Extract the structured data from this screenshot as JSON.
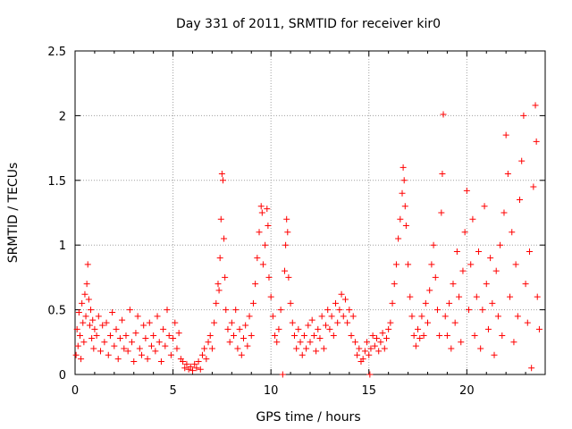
{
  "chart_data": {
    "type": "scatter",
    "title": "Day 331 of 2011, SRMTID for receiver kir0",
    "xlabel": "GPS time / hours",
    "ylabel": "SRMTID / TECUs",
    "xlim": [
      0,
      24
    ],
    "ylim": [
      0,
      2.5
    ],
    "xticks": [
      0,
      5,
      10,
      15,
      20
    ],
    "yticks": [
      0,
      0.5,
      1,
      1.5,
      2,
      2.5
    ],
    "xtick_labels": [
      "0",
      "5",
      "10",
      "15",
      "20"
    ],
    "ytick_labels": [
      "0",
      "0.5",
      "1",
      "1.5",
      "2",
      "2.5"
    ],
    "grid": true,
    "marker": "+",
    "color": "#ff0000",
    "series": [
      {
        "name": "SRMTID",
        "points": [
          [
            0.05,
            0.15
          ],
          [
            0.1,
            0.35
          ],
          [
            0.15,
            0.22
          ],
          [
            0.2,
            0.48
          ],
          [
            0.25,
            0.3
          ],
          [
            0.3,
            0.12
          ],
          [
            0.35,
            0.55
          ],
          [
            0.4,
            0.4
          ],
          [
            0.45,
            0.25
          ],
          [
            0.5,
            0.62
          ],
          [
            0.55,
            0.45
          ],
          [
            0.6,
            0.7
          ],
          [
            0.65,
            0.85
          ],
          [
            0.7,
            0.58
          ],
          [
            0.75,
            0.38
          ],
          [
            0.8,
            0.5
          ],
          [
            0.85,
            0.28
          ],
          [
            0.9,
            0.42
          ],
          [
            0.95,
            0.2
          ],
          [
            1.0,
            0.35
          ],
          [
            1.1,
            0.3
          ],
          [
            1.2,
            0.45
          ],
          [
            1.3,
            0.18
          ],
          [
            1.4,
            0.38
          ],
          [
            1.5,
            0.25
          ],
          [
            1.6,
            0.4
          ],
          [
            1.7,
            0.15
          ],
          [
            1.8,
            0.3
          ],
          [
            1.9,
            0.48
          ],
          [
            2.0,
            0.22
          ],
          [
            2.1,
            0.35
          ],
          [
            2.2,
            0.12
          ],
          [
            2.3,
            0.28
          ],
          [
            2.4,
            0.42
          ],
          [
            2.5,
            0.2
          ],
          [
            2.6,
            0.3
          ],
          [
            2.7,
            0.18
          ],
          [
            2.8,
            0.5
          ],
          [
            2.9,
            0.25
          ],
          [
            3.0,
            0.1
          ],
          [
            3.1,
            0.32
          ],
          [
            3.2,
            0.45
          ],
          [
            3.3,
            0.2
          ],
          [
            3.4,
            0.15
          ],
          [
            3.5,
            0.38
          ],
          [
            3.6,
            0.28
          ],
          [
            3.7,
            0.12
          ],
          [
            3.8,
            0.4
          ],
          [
            3.9,
            0.22
          ],
          [
            4.0,
            0.3
          ],
          [
            4.1,
            0.18
          ],
          [
            4.2,
            0.45
          ],
          [
            4.3,
            0.25
          ],
          [
            4.4,
            0.1
          ],
          [
            4.5,
            0.35
          ],
          [
            4.6,
            0.22
          ],
          [
            4.7,
            0.5
          ],
          [
            4.8,
            0.3
          ],
          [
            4.9,
            0.15
          ],
          [
            5.0,
            0.28
          ],
          [
            5.1,
            0.4
          ],
          [
            5.2,
            0.2
          ],
          [
            5.3,
            0.32
          ],
          [
            5.4,
            0.12
          ],
          [
            5.5,
            0.1
          ],
          [
            5.6,
            0.05
          ],
          [
            5.7,
            0.08
          ],
          [
            5.8,
            0.04
          ],
          [
            5.9,
            0.06
          ],
          [
            6.0,
            0.03
          ],
          [
            6.1,
            0.08
          ],
          [
            6.2,
            0.05
          ],
          [
            6.3,
            0.1
          ],
          [
            6.4,
            0.04
          ],
          [
            6.5,
            0.15
          ],
          [
            6.6,
            0.2
          ],
          [
            6.7,
            0.12
          ],
          [
            6.8,
            0.25
          ],
          [
            6.9,
            0.3
          ],
          [
            7.0,
            0.2
          ],
          [
            7.1,
            0.4
          ],
          [
            7.2,
            0.55
          ],
          [
            7.3,
            0.7
          ],
          [
            7.35,
            0.65
          ],
          [
            7.4,
            0.9
          ],
          [
            7.45,
            1.2
          ],
          [
            7.5,
            1.55
          ],
          [
            7.55,
            1.5
          ],
          [
            7.6,
            1.05
          ],
          [
            7.65,
            0.75
          ],
          [
            7.7,
            0.5
          ],
          [
            7.8,
            0.35
          ],
          [
            7.9,
            0.25
          ],
          [
            8.0,
            0.4
          ],
          [
            8.1,
            0.3
          ],
          [
            8.2,
            0.5
          ],
          [
            8.3,
            0.2
          ],
          [
            8.4,
            0.35
          ],
          [
            8.5,
            0.15
          ],
          [
            8.6,
            0.28
          ],
          [
            8.7,
            0.38
          ],
          [
            8.8,
            0.22
          ],
          [
            8.9,
            0.45
          ],
          [
            9.0,
            0.3
          ],
          [
            9.1,
            0.55
          ],
          [
            9.2,
            0.7
          ],
          [
            9.3,
            0.9
          ],
          [
            9.4,
            1.1
          ],
          [
            9.5,
            1.3
          ],
          [
            9.55,
            1.25
          ],
          [
            9.6,
            0.85
          ],
          [
            9.7,
            1.0
          ],
          [
            9.8,
            1.28
          ],
          [
            9.85,
            1.15
          ],
          [
            9.9,
            0.75
          ],
          [
            10.0,
            0.6
          ],
          [
            10.1,
            0.45
          ],
          [
            10.2,
            0.3
          ],
          [
            10.3,
            0.25
          ],
          [
            10.4,
            0.35
          ],
          [
            10.5,
            0.5
          ],
          [
            10.6,
            0.0
          ],
          [
            10.7,
            0.8
          ],
          [
            10.75,
            1.0
          ],
          [
            10.8,
            1.2
          ],
          [
            10.85,
            1.1
          ],
          [
            10.9,
            0.75
          ],
          [
            11.0,
            0.55
          ],
          [
            11.1,
            0.4
          ],
          [
            11.2,
            0.3
          ],
          [
            11.3,
            0.2
          ],
          [
            11.4,
            0.35
          ],
          [
            11.5,
            0.25
          ],
          [
            11.6,
            0.15
          ],
          [
            11.7,
            0.3
          ],
          [
            11.8,
            0.2
          ],
          [
            11.9,
            0.38
          ],
          [
            12.0,
            0.25
          ],
          [
            12.1,
            0.42
          ],
          [
            12.2,
            0.3
          ],
          [
            12.3,
            0.18
          ],
          [
            12.4,
            0.35
          ],
          [
            12.5,
            0.28
          ],
          [
            12.6,
            0.45
          ],
          [
            12.7,
            0.2
          ],
          [
            12.8,
            0.38
          ],
          [
            12.9,
            0.5
          ],
          [
            13.0,
            0.35
          ],
          [
            13.1,
            0.45
          ],
          [
            13.2,
            0.3
          ],
          [
            13.3,
            0.55
          ],
          [
            13.4,
            0.4
          ],
          [
            13.5,
            0.5
          ],
          [
            13.6,
            0.62
          ],
          [
            13.7,
            0.45
          ],
          [
            13.8,
            0.58
          ],
          [
            13.9,
            0.4
          ],
          [
            14.0,
            0.5
          ],
          [
            14.1,
            0.3
          ],
          [
            14.2,
            0.45
          ],
          [
            14.3,
            0.25
          ],
          [
            14.4,
            0.15
          ],
          [
            14.5,
            0.2
          ],
          [
            14.6,
            0.1
          ],
          [
            14.7,
            0.12
          ],
          [
            14.8,
            0.18
          ],
          [
            14.9,
            0.25
          ],
          [
            15.0,
            0.15
          ],
          [
            15.05,
            0.0
          ],
          [
            15.1,
            0.2
          ],
          [
            15.2,
            0.3
          ],
          [
            15.3,
            0.22
          ],
          [
            15.4,
            0.28
          ],
          [
            15.5,
            0.18
          ],
          [
            15.6,
            0.25
          ],
          [
            15.7,
            0.32
          ],
          [
            15.8,
            0.2
          ],
          [
            15.9,
            0.28
          ],
          [
            16.0,
            0.35
          ],
          [
            16.1,
            0.4
          ],
          [
            16.2,
            0.55
          ],
          [
            16.3,
            0.7
          ],
          [
            16.4,
            0.85
          ],
          [
            16.5,
            1.05
          ],
          [
            16.6,
            1.2
          ],
          [
            16.7,
            1.4
          ],
          [
            16.75,
            1.6
          ],
          [
            16.8,
            1.5
          ],
          [
            16.85,
            1.3
          ],
          [
            16.9,
            1.15
          ],
          [
            17.0,
            0.85
          ],
          [
            17.1,
            0.6
          ],
          [
            17.2,
            0.45
          ],
          [
            17.3,
            0.3
          ],
          [
            17.4,
            0.22
          ],
          [
            17.5,
            0.35
          ],
          [
            17.6,
            0.28
          ],
          [
            17.7,
            0.45
          ],
          [
            17.8,
            0.3
          ],
          [
            17.9,
            0.55
          ],
          [
            18.0,
            0.4
          ],
          [
            18.1,
            0.65
          ],
          [
            18.2,
            0.85
          ],
          [
            18.3,
            1.0
          ],
          [
            18.4,
            0.75
          ],
          [
            18.5,
            0.5
          ],
          [
            18.6,
            0.3
          ],
          [
            18.7,
            1.25
          ],
          [
            18.75,
            1.55
          ],
          [
            18.8,
            2.01
          ],
          [
            18.9,
            0.45
          ],
          [
            19.0,
            0.3
          ],
          [
            19.1,
            0.55
          ],
          [
            19.2,
            0.2
          ],
          [
            19.3,
            0.7
          ],
          [
            19.4,
            0.4
          ],
          [
            19.5,
            0.95
          ],
          [
            19.6,
            0.6
          ],
          [
            19.7,
            0.25
          ],
          [
            19.8,
            0.8
          ],
          [
            19.9,
            1.1
          ],
          [
            20.0,
            1.42
          ],
          [
            20.1,
            0.5
          ],
          [
            20.2,
            0.85
          ],
          [
            20.3,
            1.2
          ],
          [
            20.4,
            0.3
          ],
          [
            20.5,
            0.6
          ],
          [
            20.6,
            0.95
          ],
          [
            20.7,
            0.2
          ],
          [
            20.8,
            0.5
          ],
          [
            20.9,
            1.3
          ],
          [
            21.0,
            0.7
          ],
          [
            21.1,
            0.35
          ],
          [
            21.2,
            0.9
          ],
          [
            21.3,
            0.55
          ],
          [
            21.4,
            0.15
          ],
          [
            21.5,
            0.8
          ],
          [
            21.6,
            0.45
          ],
          [
            21.7,
            1.0
          ],
          [
            21.8,
            0.3
          ],
          [
            21.9,
            1.25
          ],
          [
            22.0,
            1.85
          ],
          [
            22.1,
            1.55
          ],
          [
            22.2,
            0.6
          ],
          [
            22.3,
            1.1
          ],
          [
            22.4,
            0.25
          ],
          [
            22.5,
            0.85
          ],
          [
            22.6,
            0.45
          ],
          [
            22.7,
            1.35
          ],
          [
            22.8,
            1.65
          ],
          [
            22.9,
            2.0
          ],
          [
            23.0,
            0.7
          ],
          [
            23.1,
            0.4
          ],
          [
            23.2,
            0.95
          ],
          [
            23.3,
            0.05
          ],
          [
            23.4,
            1.45
          ],
          [
            23.5,
            2.08
          ],
          [
            23.55,
            1.8
          ],
          [
            23.6,
            0.6
          ],
          [
            23.7,
            0.35
          ]
        ]
      }
    ]
  }
}
